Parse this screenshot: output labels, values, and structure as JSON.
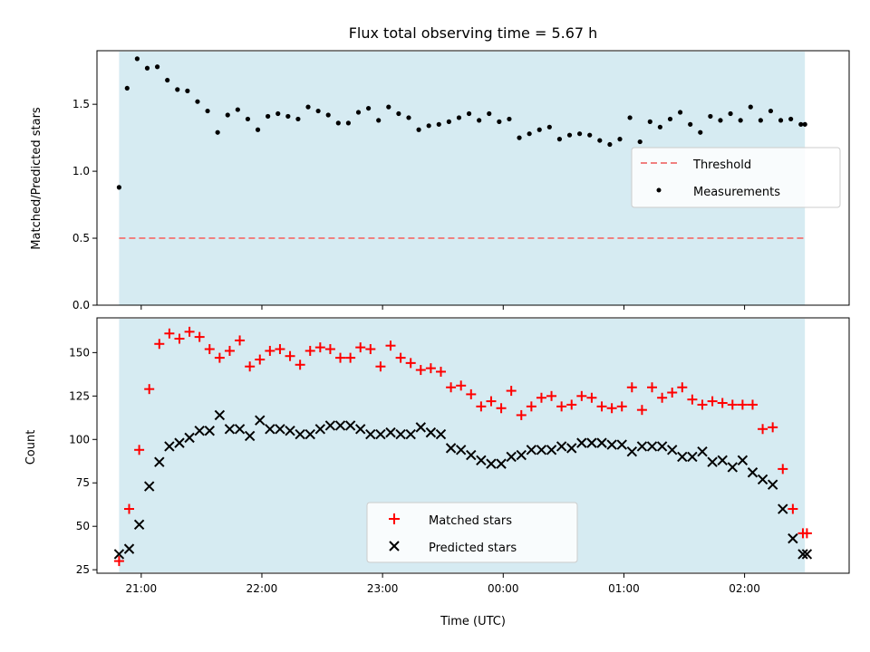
{
  "chart_data": [
    {
      "type": "scatter",
      "title": "Flux total observing time = 5.67 h",
      "ylabel": "Matched/Predicted stars",
      "xlabel": "",
      "xlim": [
        "20:38",
        "02:52"
      ],
      "ylim": [
        0,
        1.9
      ],
      "yticks": [
        "0.0",
        "0.5",
        "1.0",
        "1.5"
      ],
      "observing_window": [
        "20:49",
        "02:30"
      ],
      "window_color": "#add8e6",
      "threshold": 0.5,
      "threshold_color": "#f08080",
      "measurement_color": "#000000",
      "legend_position": "center-right",
      "legend": [
        "Threshold",
        "Measurements"
      ],
      "x": [
        "20:49",
        "20:53",
        "20:58",
        "21:03",
        "21:08",
        "21:13",
        "21:18",
        "21:23",
        "21:28",
        "21:33",
        "21:38",
        "21:43",
        "21:48",
        "21:53",
        "21:58",
        "22:03",
        "22:08",
        "22:13",
        "22:18",
        "22:23",
        "22:28",
        "22:33",
        "22:38",
        "22:43",
        "22:48",
        "22:53",
        "22:58",
        "23:03",
        "23:08",
        "23:13",
        "23:18",
        "23:23",
        "23:28",
        "23:33",
        "23:38",
        "23:43",
        "23:48",
        "23:53",
        "23:58",
        "00:03",
        "00:08",
        "00:13",
        "00:18",
        "00:23",
        "00:28",
        "00:33",
        "00:38",
        "00:43",
        "00:48",
        "00:53",
        "00:58",
        "01:03",
        "01:08",
        "01:13",
        "01:18",
        "01:23",
        "01:28",
        "01:33",
        "01:38",
        "01:43",
        "01:48",
        "01:53",
        "01:58",
        "02:03",
        "02:08",
        "02:13",
        "02:18",
        "02:23",
        "02:28",
        "02:30"
      ],
      "values": [
        0.88,
        1.62,
        1.84,
        1.77,
        1.78,
        1.68,
        1.61,
        1.6,
        1.52,
        1.45,
        1.29,
        1.42,
        1.46,
        1.39,
        1.31,
        1.41,
        1.43,
        1.41,
        1.39,
        1.48,
        1.45,
        1.42,
        1.36,
        1.36,
        1.44,
        1.47,
        1.38,
        1.48,
        1.43,
        1.4,
        1.31,
        1.34,
        1.35,
        1.37,
        1.4,
        1.43,
        1.38,
        1.43,
        1.37,
        1.39,
        1.25,
        1.28,
        1.31,
        1.33,
        1.24,
        1.27,
        1.28,
        1.27,
        1.23,
        1.2,
        1.24,
        1.4,
        1.22,
        1.37,
        1.33,
        1.39,
        1.44,
        1.35,
        1.29,
        1.41,
        1.38,
        1.43,
        1.38,
        1.48,
        1.38,
        1.45,
        1.38,
        1.39,
        1.35,
        1.35
      ]
    },
    {
      "type": "scatter",
      "title": "",
      "ylabel": "Count",
      "xlabel": "Time (UTC)",
      "xlim": [
        "20:38",
        "02:52"
      ],
      "ylim": [
        23,
        170
      ],
      "yticks": [
        "25",
        "50",
        "75",
        "100",
        "125",
        "150"
      ],
      "xticks": [
        "21:00",
        "22:00",
        "23:00",
        "00:00",
        "01:00",
        "02:00"
      ],
      "observing_window": [
        "20:49",
        "02:30"
      ],
      "window_color": "#add8e6",
      "legend_position": "lower-center",
      "legend": [
        "Matched stars",
        "Predicted stars"
      ],
      "colors": {
        "matched": "#ff0000",
        "predicted": "#000000"
      },
      "series": [
        {
          "name": "Matched stars",
          "x": [
            "20:49",
            "20:54",
            "20:59",
            "21:04",
            "21:09",
            "21:14",
            "21:19",
            "21:24",
            "21:29",
            "21:34",
            "21:39",
            "21:44",
            "21:49",
            "21:54",
            "21:59",
            "22:04",
            "22:09",
            "22:14",
            "22:19",
            "22:24",
            "22:29",
            "22:34",
            "22:39",
            "22:44",
            "22:49",
            "22:54",
            "22:59",
            "23:04",
            "23:09",
            "23:14",
            "23:19",
            "23:24",
            "23:29",
            "23:34",
            "23:39",
            "23:44",
            "23:49",
            "23:54",
            "23:59",
            "00:04",
            "00:09",
            "00:14",
            "00:19",
            "00:24",
            "00:29",
            "00:34",
            "00:39",
            "00:44",
            "00:49",
            "00:54",
            "00:59",
            "01:04",
            "01:09",
            "01:14",
            "01:19",
            "01:24",
            "01:29",
            "01:34",
            "01:39",
            "01:44",
            "01:49",
            "01:54",
            "01:59",
            "02:04",
            "02:09",
            "02:14",
            "02:19",
            "02:24",
            "02:29",
            "02:31"
          ],
          "values": [
            30,
            60,
            94,
            129,
            155,
            161,
            158,
            162,
            159,
            152,
            147,
            151,
            157,
            142,
            146,
            151,
            152,
            148,
            143,
            151,
            153,
            152,
            147,
            147,
            153,
            152,
            142,
            154,
            147,
            144,
            140,
            141,
            139,
            130,
            131,
            126,
            119,
            122,
            118,
            128,
            114,
            119,
            124,
            125,
            119,
            120,
            125,
            124,
            119,
            118,
            119,
            130,
            117,
            130,
            124,
            127,
            130,
            123,
            120,
            122,
            121,
            120,
            120,
            120,
            106,
            107,
            83,
            60,
            46,
            46
          ],
          "marker": "+"
        },
        {
          "name": "Predicted stars",
          "x": [
            "20:49",
            "20:54",
            "20:59",
            "21:04",
            "21:09",
            "21:14",
            "21:19",
            "21:24",
            "21:29",
            "21:34",
            "21:39",
            "21:44",
            "21:49",
            "21:54",
            "21:59",
            "22:04",
            "22:09",
            "22:14",
            "22:19",
            "22:24",
            "22:29",
            "22:34",
            "22:39",
            "22:44",
            "22:49",
            "22:54",
            "22:59",
            "23:04",
            "23:09",
            "23:14",
            "23:19",
            "23:24",
            "23:29",
            "23:34",
            "23:39",
            "23:44",
            "23:49",
            "23:54",
            "23:59",
            "00:04",
            "00:09",
            "00:14",
            "00:19",
            "00:24",
            "00:29",
            "00:34",
            "00:39",
            "00:44",
            "00:49",
            "00:54",
            "00:59",
            "01:04",
            "01:09",
            "01:14",
            "01:19",
            "01:24",
            "01:29",
            "01:34",
            "01:39",
            "01:44",
            "01:49",
            "01:54",
            "01:59",
            "02:04",
            "02:09",
            "02:14",
            "02:19",
            "02:24",
            "02:29",
            "02:31"
          ],
          "values": [
            34,
            37,
            51,
            73,
            87,
            96,
            98,
            101,
            105,
            105,
            114,
            106,
            106,
            102,
            111,
            106,
            106,
            105,
            103,
            103,
            106,
            108,
            108,
            108,
            106,
            103,
            103,
            104,
            103,
            103,
            107,
            104,
            103,
            95,
            94,
            91,
            88,
            86,
            86,
            90,
            91,
            94,
            94,
            94,
            96,
            95,
            98,
            98,
            98,
            97,
            97,
            93,
            96,
            96,
            96,
            94,
            90,
            90,
            93,
            87,
            88,
            84,
            88,
            81,
            77,
            74,
            60,
            43,
            34,
            34
          ],
          "marker": "x"
        }
      ]
    }
  ]
}
